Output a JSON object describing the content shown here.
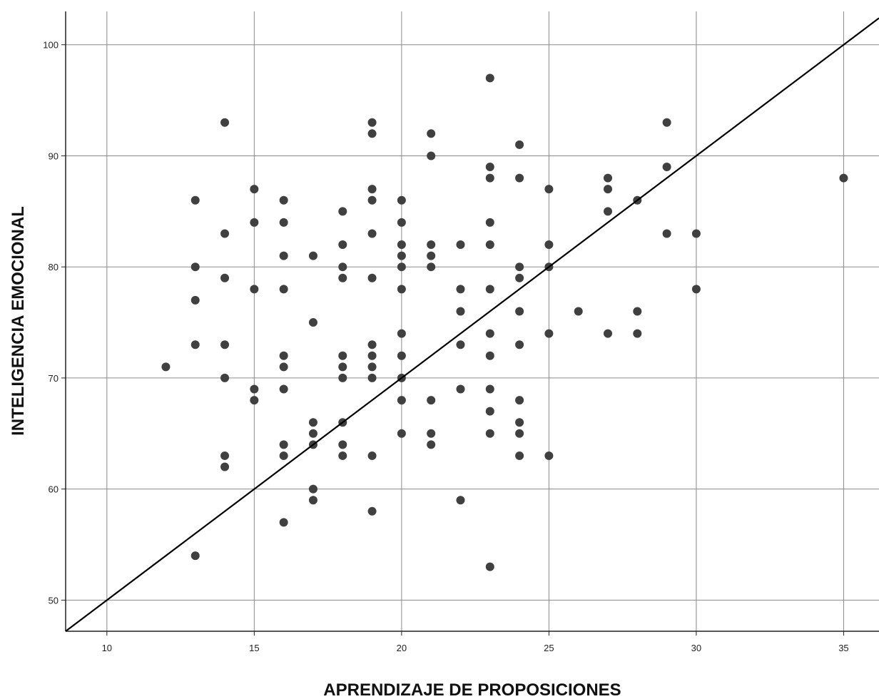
{
  "chart_data": {
    "type": "scatter",
    "xlabel": "APRENDIZAJE DE PROPOSICIONES",
    "ylabel": "INTELIGENCIA EMOCIONAL",
    "xlim": [
      8.6,
      36.2
    ],
    "ylim": [
      47.2,
      103
    ],
    "xticks": [
      10,
      15,
      20,
      25,
      30,
      35
    ],
    "yticks": [
      50,
      60,
      70,
      80,
      90,
      100
    ],
    "grid": true,
    "reference_line": {
      "from": [
        8.6,
        47.2
      ],
      "to": [
        36.2,
        102.4
      ]
    },
    "points": [
      [
        12,
        71
      ],
      [
        13,
        86
      ],
      [
        13,
        80
      ],
      [
        13,
        77
      ],
      [
        13,
        73
      ],
      [
        13,
        54
      ],
      [
        14,
        93
      ],
      [
        14,
        83
      ],
      [
        14,
        79
      ],
      [
        14,
        73
      ],
      [
        14,
        70
      ],
      [
        14,
        63
      ],
      [
        14,
        62
      ],
      [
        15,
        87
      ],
      [
        15,
        84
      ],
      [
        15,
        78
      ],
      [
        15,
        69
      ],
      [
        15,
        68
      ],
      [
        16,
        86
      ],
      [
        16,
        84
      ],
      [
        16,
        81
      ],
      [
        16,
        78
      ],
      [
        16,
        72
      ],
      [
        16,
        71
      ],
      [
        16,
        69
      ],
      [
        16,
        64
      ],
      [
        16,
        63
      ],
      [
        16,
        57
      ],
      [
        17,
        81
      ],
      [
        17,
        75
      ],
      [
        17,
        66
      ],
      [
        17,
        65
      ],
      [
        17,
        64
      ],
      [
        17,
        60
      ],
      [
        17,
        59
      ],
      [
        18,
        85
      ],
      [
        18,
        82
      ],
      [
        18,
        80
      ],
      [
        18,
        79
      ],
      [
        18,
        72
      ],
      [
        18,
        71
      ],
      [
        18,
        70
      ],
      [
        18,
        66
      ],
      [
        18,
        64
      ],
      [
        18,
        63
      ],
      [
        19,
        93
      ],
      [
        19,
        92
      ],
      [
        19,
        87
      ],
      [
        19,
        86
      ],
      [
        19,
        83
      ],
      [
        19,
        79
      ],
      [
        19,
        73
      ],
      [
        19,
        72
      ],
      [
        19,
        71
      ],
      [
        19,
        70
      ],
      [
        19,
        63
      ],
      [
        19,
        58
      ],
      [
        20,
        86
      ],
      [
        20,
        84
      ],
      [
        20,
        82
      ],
      [
        20,
        81
      ],
      [
        20,
        80
      ],
      [
        20,
        78
      ],
      [
        20,
        74
      ],
      [
        20,
        72
      ],
      [
        20,
        70
      ],
      [
        20,
        68
      ],
      [
        20,
        65
      ],
      [
        21,
        92
      ],
      [
        21,
        90
      ],
      [
        21,
        82
      ],
      [
        21,
        81
      ],
      [
        21,
        80
      ],
      [
        21,
        68
      ],
      [
        21,
        65
      ],
      [
        21,
        64
      ],
      [
        22,
        82
      ],
      [
        22,
        78
      ],
      [
        22,
        76
      ],
      [
        22,
        73
      ],
      [
        22,
        69
      ],
      [
        22,
        59
      ],
      [
        23,
        97
      ],
      [
        23,
        89
      ],
      [
        23,
        88
      ],
      [
        23,
        84
      ],
      [
        23,
        82
      ],
      [
        23,
        78
      ],
      [
        23,
        74
      ],
      [
        23,
        72
      ],
      [
        23,
        69
      ],
      [
        23,
        67
      ],
      [
        23,
        65
      ],
      [
        23,
        53
      ],
      [
        24,
        91
      ],
      [
        24,
        88
      ],
      [
        24,
        80
      ],
      [
        24,
        79
      ],
      [
        24,
        76
      ],
      [
        24,
        73
      ],
      [
        24,
        68
      ],
      [
        24,
        66
      ],
      [
        24,
        65
      ],
      [
        24,
        63
      ],
      [
        25,
        87
      ],
      [
        25,
        82
      ],
      [
        25,
        80
      ],
      [
        25,
        74
      ],
      [
        25,
        63
      ],
      [
        26,
        76
      ],
      [
        27,
        88
      ],
      [
        27,
        87
      ],
      [
        27,
        85
      ],
      [
        27,
        74
      ],
      [
        28,
        86
      ],
      [
        28,
        76
      ],
      [
        28,
        74
      ],
      [
        29,
        93
      ],
      [
        29,
        89
      ],
      [
        29,
        83
      ],
      [
        30,
        83
      ],
      [
        30,
        78
      ],
      [
        35,
        88
      ]
    ]
  }
}
